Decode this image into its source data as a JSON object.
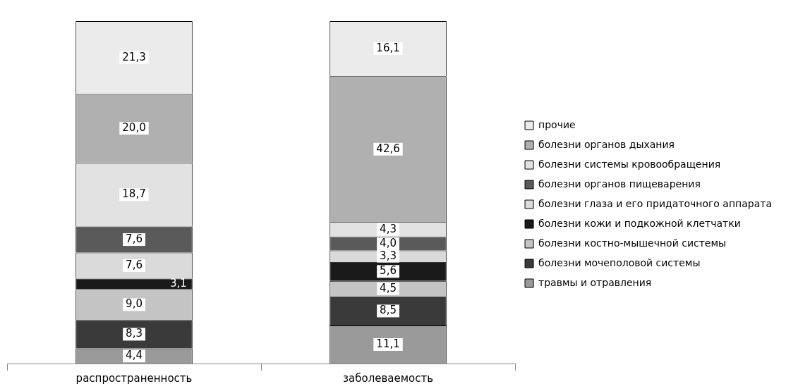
{
  "chart_data": {
    "type": "bar",
    "stacked": true,
    "categories": [
      "распространенность",
      "заболеваемость"
    ],
    "series": [
      {
        "name": "травмы и отравления",
        "color": "#9a9a9a",
        "values": [
          4.4,
          11.1
        ],
        "value_labels": [
          "4,4",
          "11,1"
        ]
      },
      {
        "name": "болезни мочеполовой системы",
        "color": "#3a3a3a",
        "values": [
          8.3,
          8.5
        ],
        "value_labels": [
          "8,3",
          "8,5"
        ]
      },
      {
        "name": "болезни костно-мышечной системы",
        "color": "#c4c4c4",
        "values": [
          9.0,
          4.5
        ],
        "value_labels": [
          "9,0",
          "4,5"
        ]
      },
      {
        "name": "болезни кожи и подкожной клетчатки",
        "color": "#1a1a1a",
        "values": [
          3.1,
          5.6
        ],
        "value_labels": [
          "3,1",
          "5,6"
        ]
      },
      {
        "name": "болезни глаза и его придаточного аппарата",
        "color": "#dadada",
        "values": [
          7.6,
          3.3
        ],
        "value_labels": [
          "7,6",
          "3,3"
        ]
      },
      {
        "name": "болезни органов пищеварения",
        "color": "#5a5a5a",
        "values": [
          7.6,
          4.0
        ],
        "value_labels": [
          "7,6",
          "4,0"
        ]
      },
      {
        "name": "болезни системы кровообращения",
        "color": "#e2e2e2",
        "values": [
          18.7,
          4.3
        ],
        "value_labels": [
          "18,7",
          "4,3"
        ]
      },
      {
        "name": "болезни органов дыхания",
        "color": "#b0b0b0",
        "values": [
          20.0,
          42.6
        ],
        "value_labels": [
          "20,0",
          "42,6"
        ]
      },
      {
        "name": "прочие",
        "color": "#ebebeb",
        "values": [
          21.3,
          16.1
        ],
        "value_labels": [
          "21,3",
          "16,1"
        ]
      }
    ],
    "tick_labels": "x",
    "grid": false,
    "legend": "right"
  }
}
